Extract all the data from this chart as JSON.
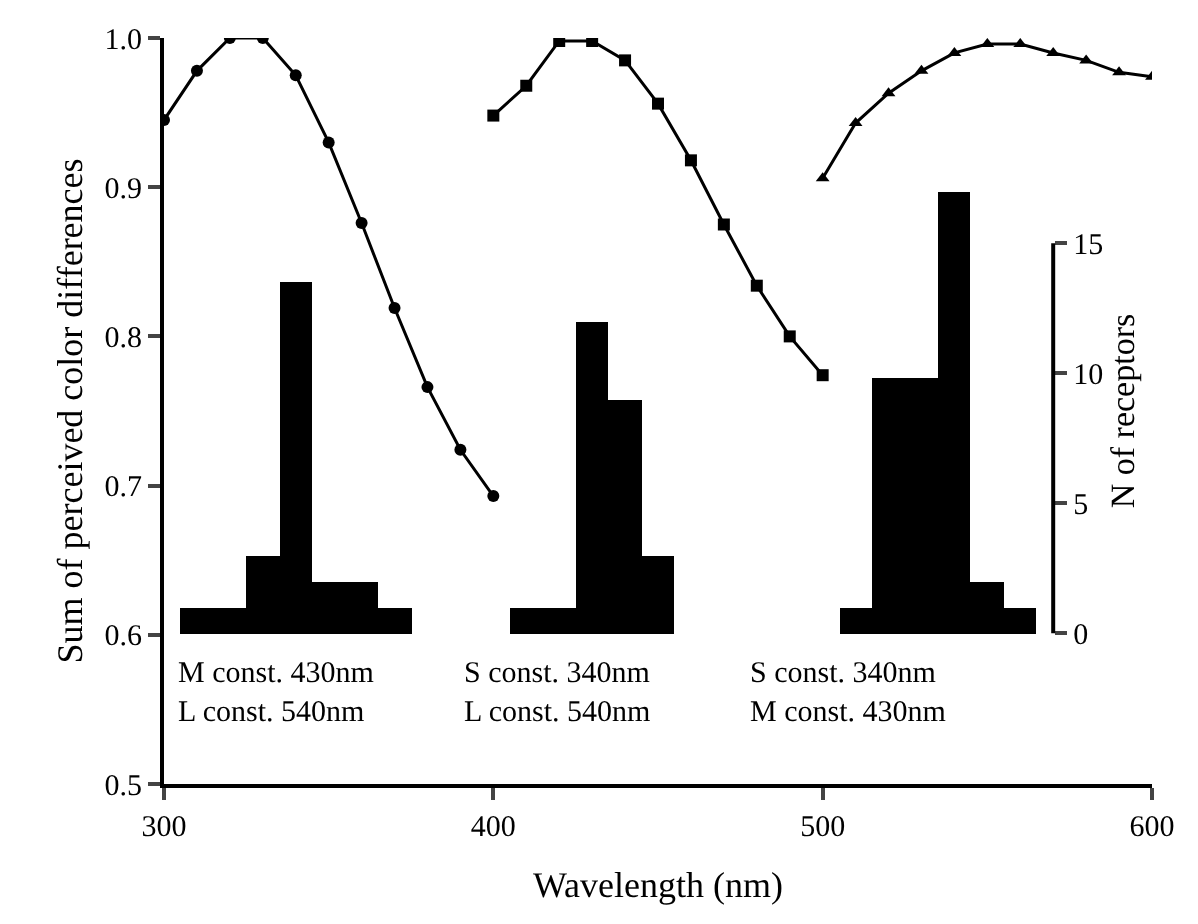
{
  "chart_data": {
    "type": "line",
    "xlabel": "Wavelength (nm)",
    "ylabel": "Sum of perceived color differences",
    "y2label": "N of receptors",
    "xlim": [
      300,
      600
    ],
    "xticks": [
      300,
      400,
      500,
      600
    ],
    "ylim": [
      0.5,
      1.0
    ],
    "yticks": [
      0.5,
      0.6,
      0.7,
      0.8,
      0.9,
      {
        "value": 1.0,
        "label": "1.0"
      }
    ],
    "y2lim": [
      -5.8,
      22.9
    ],
    "y2ticks": [
      0,
      5,
      10,
      15
    ],
    "line_style": "solid",
    "series": [
      {
        "marker": "circle",
        "color": "#000000",
        "x": [
          300,
          310,
          320,
          330,
          340,
          350,
          360,
          370,
          380,
          390,
          400
        ],
        "values": [
          0.945,
          0.978,
          1.0,
          1.0,
          0.975,
          0.93,
          0.876,
          0.819,
          0.766,
          0.724,
          0.693
        ]
      },
      {
        "marker": "square",
        "color": "#000000",
        "x": [
          400,
          410,
          420,
          430,
          440,
          450,
          460,
          470,
          480,
          490,
          500
        ],
        "values": [
          0.948,
          0.968,
          0.998,
          0.998,
          0.985,
          0.956,
          0.918,
          0.875,
          0.834,
          0.8,
          0.774
        ]
      },
      {
        "marker": "triangle",
        "color": "#000000",
        "x": [
          500,
          510,
          520,
          530,
          540,
          550,
          560,
          570,
          580,
          590,
          600
        ],
        "values": [
          0.906,
          0.943,
          0.963,
          0.978,
          0.99,
          0.996,
          0.996,
          0.99,
          0.985,
          0.977,
          0.974
        ]
      },
      {
        "type": "histogram",
        "axis": "y2",
        "color": "#000000",
        "bins": [
          305,
          315,
          325,
          335,
          345,
          355,
          365,
          375,
          385,
          395,
          405,
          415,
          425,
          435,
          445,
          455,
          465,
          475,
          485,
          495,
          505,
          515,
          525,
          535,
          545,
          555,
          565
        ],
        "values": [
          1,
          1,
          3,
          13.5,
          2,
          2,
          1,
          0,
          0,
          0,
          1,
          1,
          12,
          9,
          3,
          0,
          0,
          0,
          0,
          0,
          1,
          9.8,
          9.8,
          17,
          2,
          1
        ]
      }
    ],
    "annotations": [
      "M const. 430nm\nL const. 540nm",
      "S const. 340nm\nL const. 540nm",
      "S const. 340nm\nM const. 430nm"
    ]
  }
}
